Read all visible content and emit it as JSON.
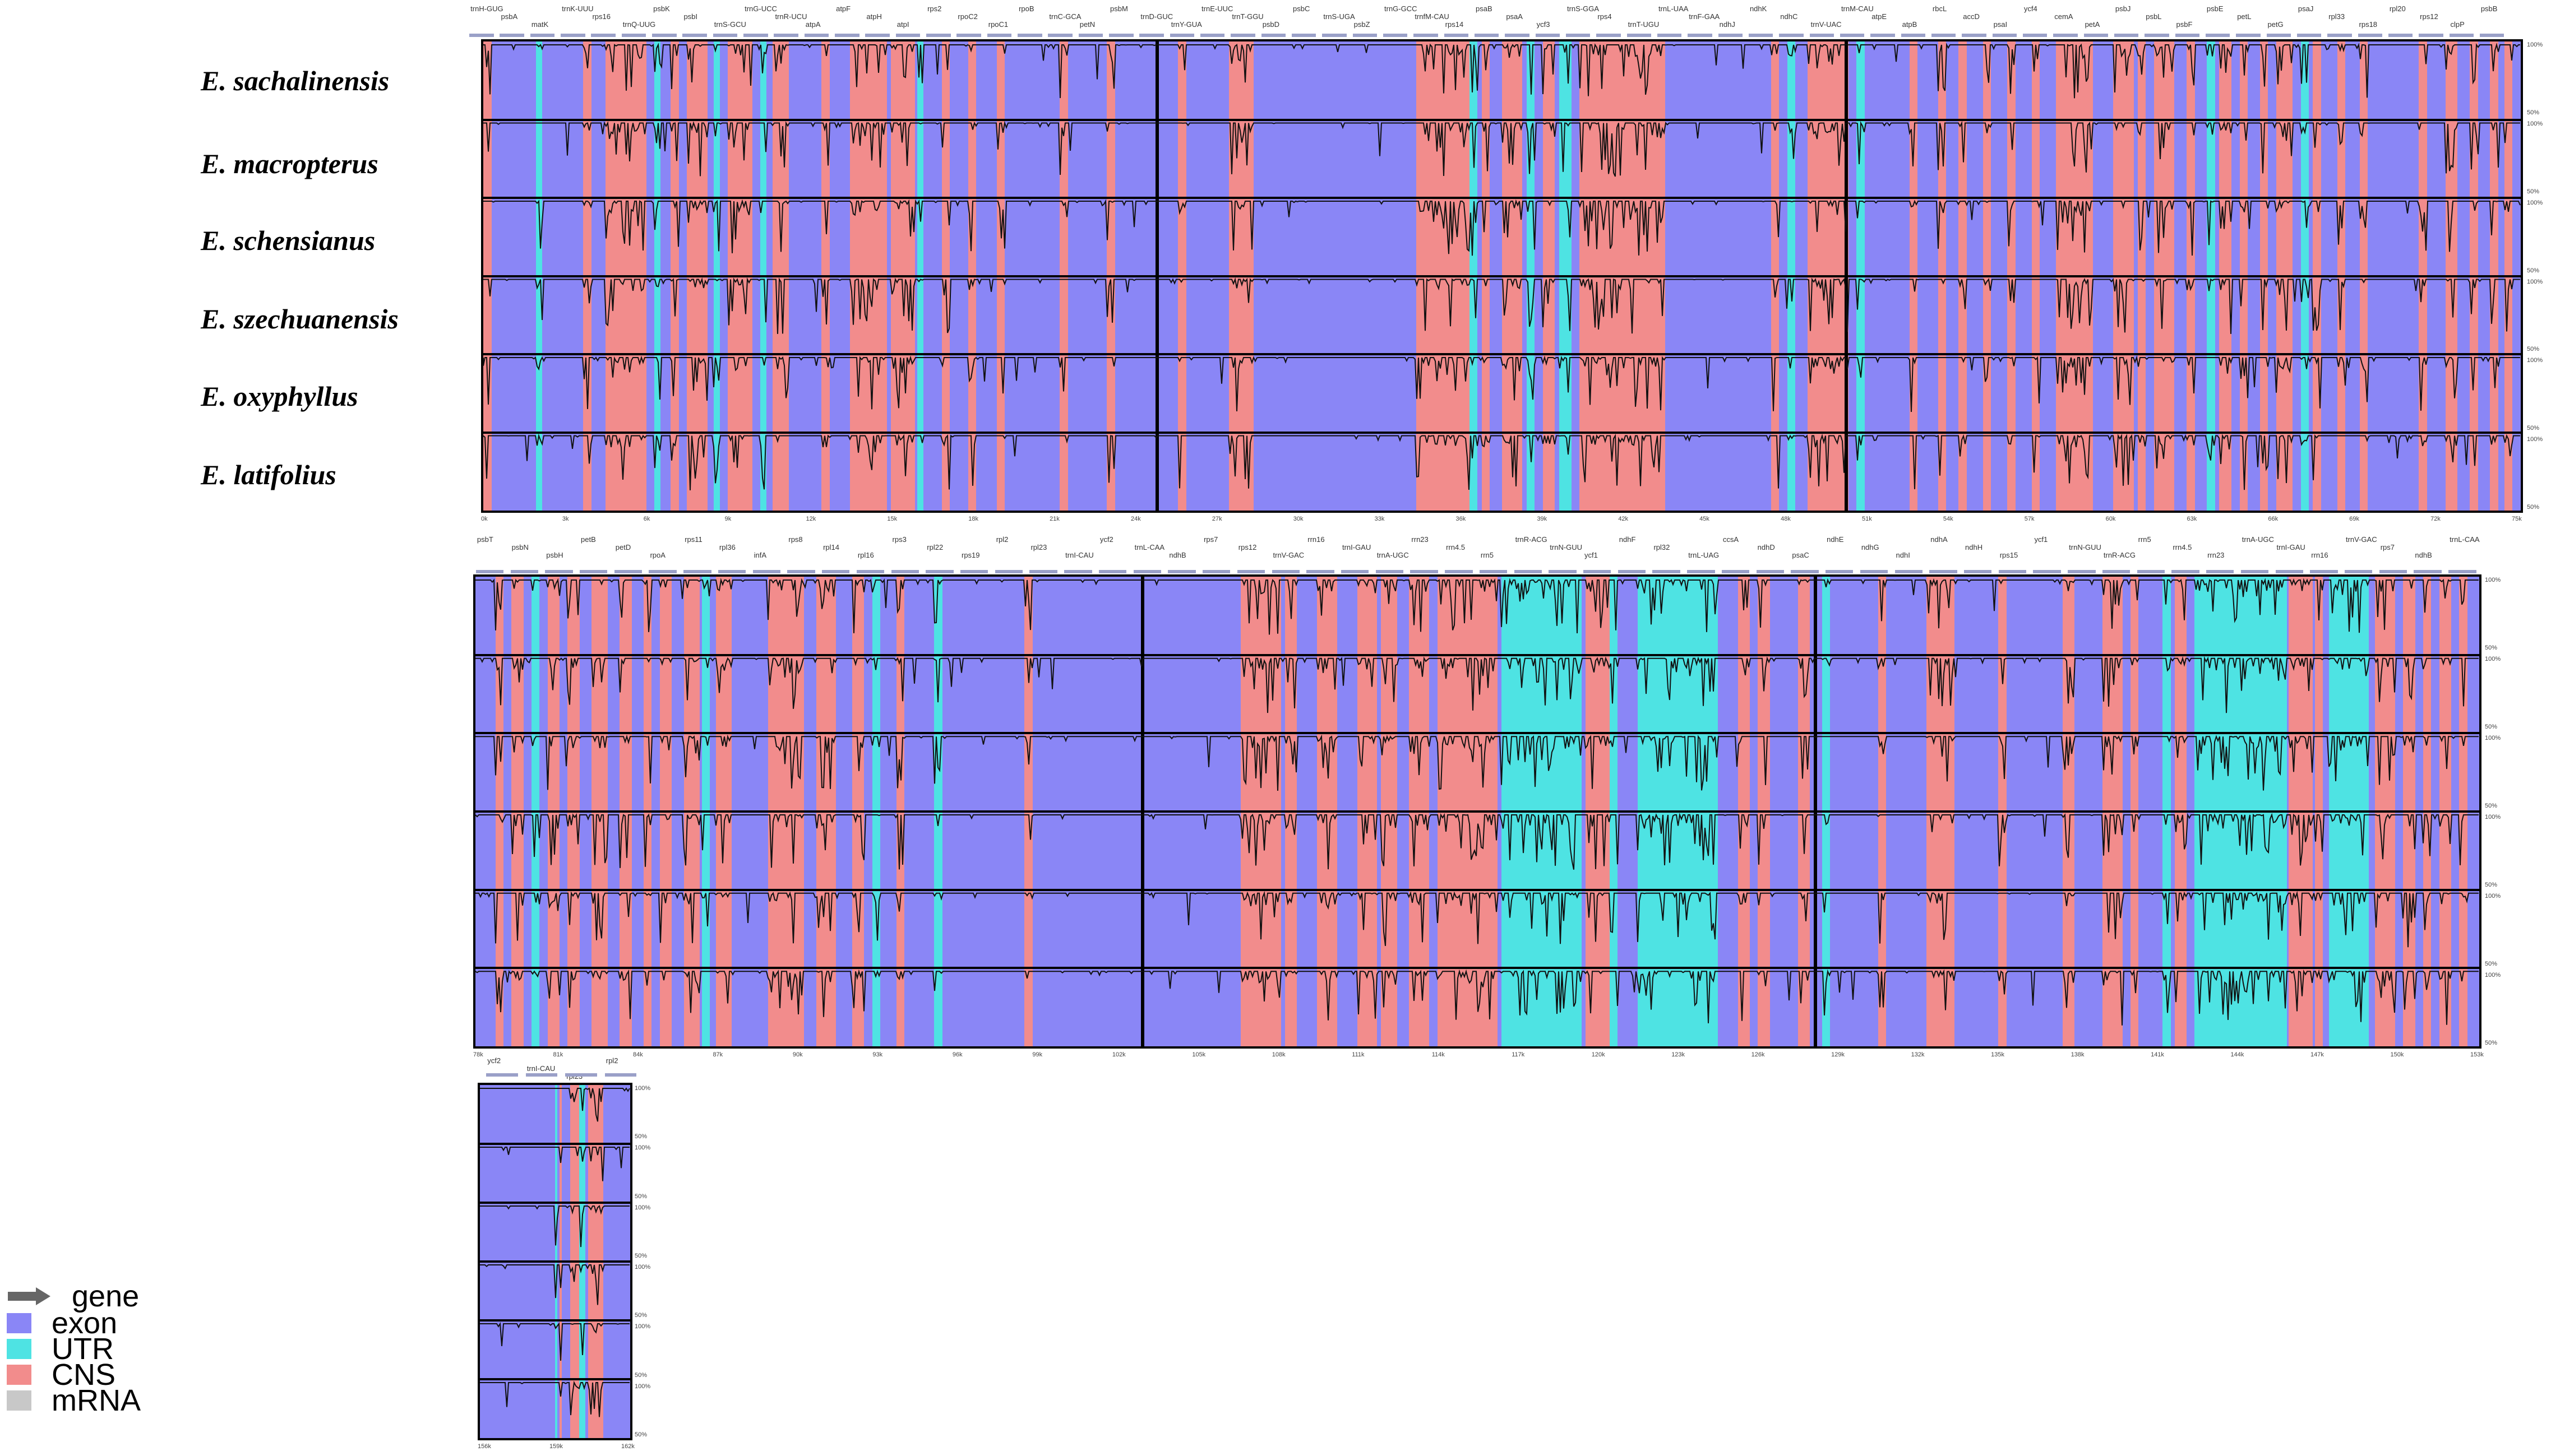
{
  "species": [
    "E. sachalinensis",
    "E. macropterus",
    "E. schensianus",
    "E. szechuanensis",
    "E. oxyphyllus",
    "E. latifolius"
  ],
  "legend": [
    {
      "label": "gene",
      "color": "#666666"
    },
    {
      "label": "exon",
      "color": "#8a86f6"
    },
    {
      "label": "UTR",
      "color": "#4ee3e3"
    },
    {
      "label": "CNS",
      "color": "#f28c8c"
    },
    {
      "label": "mRNA",
      "color": "#c8c8c8"
    }
  ],
  "colors": {
    "exon": "#8a86f6",
    "utr": "#4ee3e3",
    "cns": "#f28c8c",
    "mrna": "#c8c8c8",
    "axis": "#000000"
  },
  "percent_labels": [
    "100%",
    "50%"
  ],
  "panels": [
    {
      "genes": [
        "trnH-GUG",
        "psbA",
        "matK",
        "trnK-UUU",
        "rps16",
        "trnQ-UUG",
        "psbK",
        "psbI",
        "trnS-GCU",
        "trnG-UCC",
        "trnR-UCU",
        "atpA",
        "atpF",
        "atpH",
        "atpI",
        "rps2",
        "rpoC2",
        "rpoC1",
        "rpoB",
        "trnC-GCA",
        "petN",
        "psbM",
        "trnD-GUC",
        "trnY-GUA",
        "trnE-UUC",
        "trnT-GGU",
        "psbD",
        "psbC",
        "trnS-UGA",
        "psbZ",
        "trnG-GCC",
        "trnfM-CAU",
        "rps14",
        "psaB",
        "psaA",
        "ycf3",
        "trnS-GGA",
        "rps4",
        "trnT-UGU",
        "trnL-UAA",
        "trnF-GAA",
        "ndhJ",
        "ndhK",
        "ndhC",
        "trnV-UAC",
        "trnM-CAU",
        "atpE",
        "atpB",
        "rbcL",
        "accD",
        "psaI",
        "ycf4",
        "cemA",
        "petA",
        "psbJ",
        "psbL",
        "psbF",
        "psbE",
        "petL",
        "petG",
        "psaJ",
        "rpl33",
        "rps18",
        "rpl20",
        "rps12",
        "clpP",
        "psbB"
      ],
      "axis": [
        "0k",
        "3k",
        "6k",
        "9k",
        "12k",
        "15k",
        "18k",
        "21k",
        "24k",
        "27k",
        "30k",
        "33k",
        "36k",
        "39k",
        "42k",
        "45k",
        "48k",
        "51k",
        "54k",
        "57k",
        "60k",
        "63k",
        "66k",
        "69k",
        "72k",
        "75k"
      ]
    },
    {
      "genes": [
        "psbT",
        "psbN",
        "psbH",
        "petB",
        "petD",
        "rpoA",
        "rps11",
        "rpl36",
        "infA",
        "rps8",
        "rpl14",
        "rpl16",
        "rps3",
        "rpl22",
        "rps19",
        "rpl2",
        "rpl23",
        "trnI-CAU",
        "ycf2",
        "trnL-CAA",
        "ndhB",
        "rps7",
        "rps12",
        "trnV-GAC",
        "rrn16",
        "trnI-GAU",
        "trnA-UGC",
        "rrn23",
        "rrn4.5",
        "rrn5",
        "trnR-ACG",
        "trnN-GUU",
        "ycf1",
        "ndhF",
        "rpl32",
        "trnL-UAG",
        "ccsA",
        "ndhD",
        "psaC",
        "ndhE",
        "ndhG",
        "ndhI",
        "ndhA",
        "ndhH",
        "rps15",
        "ycf1",
        "trnN-GUU",
        "trnR-ACG",
        "rrn5",
        "rrn4.5",
        "rrn23",
        "trnA-UGC",
        "trnI-GAU",
        "rrn16",
        "trnV-GAC",
        "rps7",
        "ndhB",
        "trnL-CAA"
      ],
      "axis": [
        "78k",
        "81k",
        "84k",
        "87k",
        "90k",
        "93k",
        "96k",
        "99k",
        "102k",
        "105k",
        "108k",
        "111k",
        "114k",
        "117k",
        "120k",
        "123k",
        "126k",
        "129k",
        "132k",
        "135k",
        "138k",
        "141k",
        "144k",
        "147k",
        "150k",
        "153k"
      ]
    },
    {
      "genes": [
        "ycf2",
        "trnI-CAU",
        "rpl23",
        "rpl2"
      ],
      "axis": [
        "156k",
        "159k",
        "162k"
      ]
    }
  ]
}
